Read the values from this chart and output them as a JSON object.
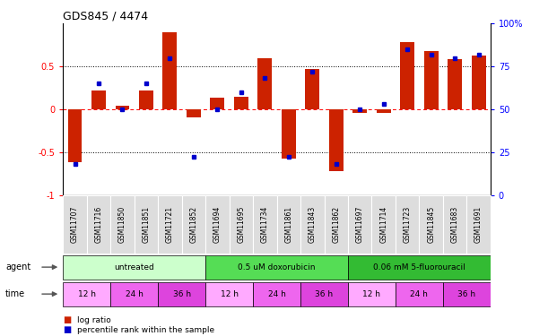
{
  "title": "GDS845 / 4474",
  "samples": [
    "GSM11707",
    "GSM11716",
    "GSM11850",
    "GSM11851",
    "GSM11721",
    "GSM11852",
    "GSM11694",
    "GSM11695",
    "GSM11734",
    "GSM11861",
    "GSM11843",
    "GSM11862",
    "GSM11697",
    "GSM11714",
    "GSM11723",
    "GSM11845",
    "GSM11683",
    "GSM11691"
  ],
  "log_ratio": [
    -0.62,
    0.22,
    0.04,
    0.22,
    0.9,
    -0.1,
    0.13,
    0.15,
    0.6,
    -0.58,
    0.47,
    -0.72,
    -0.04,
    -0.04,
    0.78,
    0.68,
    0.58,
    0.63
  ],
  "percentile": [
    18,
    65,
    50,
    65,
    80,
    22,
    50,
    60,
    68,
    22,
    72,
    18,
    50,
    53,
    85,
    82,
    80,
    82
  ],
  "agents": [
    {
      "label": "untreated",
      "start": 0,
      "end": 6,
      "color": "#ccffcc"
    },
    {
      "label": "0.5 uM doxorubicin",
      "start": 6,
      "end": 12,
      "color": "#55dd55"
    },
    {
      "label": "0.06 mM 5-fluorouracil",
      "start": 12,
      "end": 18,
      "color": "#33bb33"
    }
  ],
  "times": [
    {
      "label": "12 h",
      "start": 0,
      "end": 2,
      "color": "#ffaaff"
    },
    {
      "label": "24 h",
      "start": 2,
      "end": 4,
      "color": "#ee66ee"
    },
    {
      "label": "36 h",
      "start": 4,
      "end": 6,
      "color": "#dd44dd"
    },
    {
      "label": "12 h",
      "start": 6,
      "end": 8,
      "color": "#ffaaff"
    },
    {
      "label": "24 h",
      "start": 8,
      "end": 10,
      "color": "#ee66ee"
    },
    {
      "label": "36 h",
      "start": 10,
      "end": 12,
      "color": "#dd44dd"
    },
    {
      "label": "12 h",
      "start": 12,
      "end": 14,
      "color": "#ffaaff"
    },
    {
      "label": "24 h",
      "start": 14,
      "end": 16,
      "color": "#ee66ee"
    },
    {
      "label": "36 h",
      "start": 16,
      "end": 18,
      "color": "#dd44dd"
    }
  ],
  "bar_color": "#cc2200",
  "dot_color": "#0000cc",
  "ylim": [
    -1,
    1
  ],
  "yticks_left": [
    -1,
    -0.5,
    0,
    0.5
  ],
  "ytick_labels_left": [
    "-1",
    "-0.5",
    "0",
    "0.5"
  ],
  "yticks_right": [
    0,
    25,
    50,
    75,
    100
  ],
  "ytick_labels_right": [
    "0",
    "25",
    "50",
    "75",
    "100%"
  ],
  "hlines": [
    -0.5,
    0,
    0.5
  ],
  "background_color": "#ffffff",
  "sample_bg": "#cccccc",
  "sample_cell_bg": "#dddddd"
}
